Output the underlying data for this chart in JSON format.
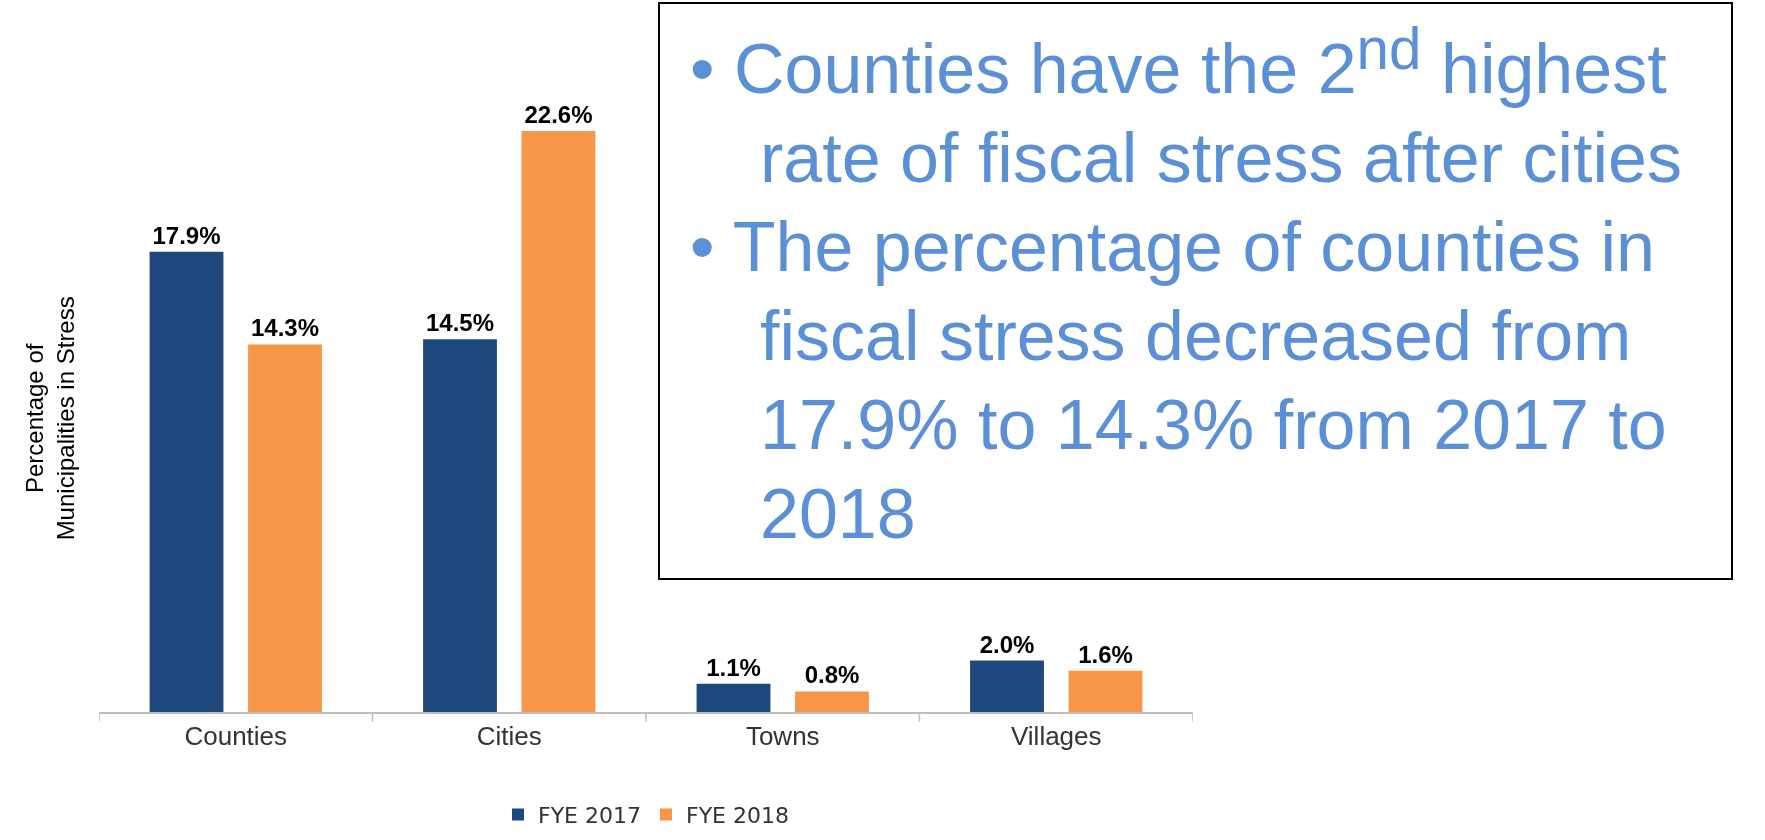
{
  "chart_data": {
    "type": "bar",
    "ylabel": "Percentage of\nMunicipalities in Stress",
    "categories": [
      "Counties",
      "Cities",
      "Towns",
      "Villages"
    ],
    "series": [
      {
        "name": "FYE 2017",
        "color": "#1f497d",
        "values": [
          17.9,
          14.5,
          1.1,
          2.0
        ],
        "value_labels": [
          "17.9%",
          "14.5%",
          "1.1%",
          "2.0%"
        ]
      },
      {
        "name": "FYE 2018",
        "color": "#f79646",
        "values": [
          14.3,
          22.6,
          0.8,
          1.6
        ],
        "value_labels": [
          "14.3%",
          "22.6%",
          "0.8%",
          "1.6%"
        ]
      }
    ],
    "legend": "bottom",
    "grid": false,
    "annotations": [
      "• Counties have the 2$^{nd}$ highest rate of fiscal stress after cities",
      "• The percentage of counties in fiscal stress decreased from 17.9% to 14.3% from 2017 to 2018"
    ]
  }
}
